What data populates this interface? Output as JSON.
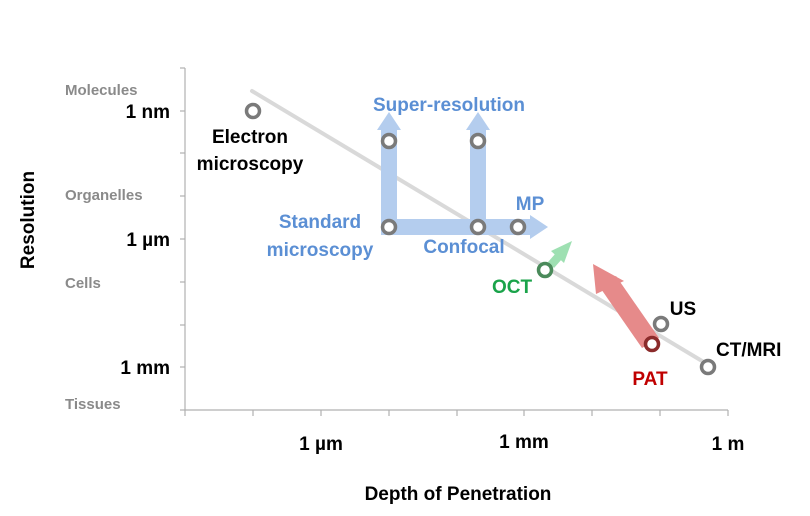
{
  "diagram": {
    "y_axis": {
      "title": "Resolution",
      "categories": [
        "Molecules",
        "Organelles",
        "Cells",
        "Tissues"
      ],
      "ticks": [
        "1 nm",
        "1 µm",
        "1 mm"
      ]
    },
    "x_axis": {
      "title": "Depth of Penetration",
      "ticks": [
        "1 µm",
        "1 mm",
        "1 m"
      ]
    },
    "labels": {
      "electron_line1": "Electron",
      "electron_line2": "microscopy",
      "super_resolution": "Super-resolution",
      "standard_line1": "Standard",
      "standard_line2": "microscopy",
      "confocal": "Confocal",
      "mp": "MP",
      "oct": "OCT",
      "us": "US",
      "ctmri": "CT/MRI",
      "pat": "PAT"
    },
    "colors": {
      "blue_label": "#5b8fd4",
      "blue_arrow": "#b4cdee",
      "green_label": "#1aa34a",
      "green_arrow": "#9ee0b2",
      "red_label": "#c00000",
      "red_arrow": "#e68a8a",
      "trend_line": "#d9d9d9",
      "marker_gray": "#7a7a7a",
      "marker_green": "#4a8a5a",
      "marker_red": "#8b2b2b",
      "category_text": "#8a8a8a"
    }
  }
}
